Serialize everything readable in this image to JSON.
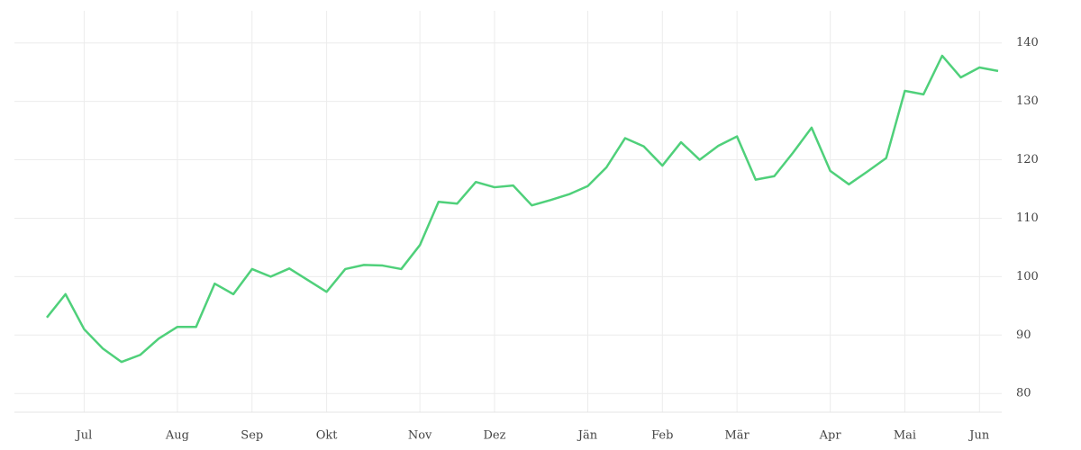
{
  "chart_data": {
    "type": "line",
    "categories": [
      null,
      null,
      "Jul",
      null,
      null,
      null,
      null,
      "Aug",
      null,
      null,
      null,
      "Sep",
      null,
      null,
      null,
      "Okt",
      null,
      null,
      null,
      null,
      "Nov",
      null,
      null,
      null,
      "Dez",
      null,
      null,
      null,
      null,
      "Jän",
      null,
      null,
      null,
      "Feb",
      null,
      null,
      null,
      "Mär",
      null,
      null,
      null,
      null,
      "Apr",
      null,
      null,
      null,
      "Mai",
      null,
      null,
      null,
      "Jun",
      null
    ],
    "series": [
      {
        "color": "#4fd07a",
        "values": [
          93.0,
          97.0,
          91.0,
          87.7,
          85.4,
          86.6,
          89.4,
          91.4,
          91.4,
          98.8,
          97.0,
          101.3,
          100.0,
          101.4,
          99.4,
          97.4,
          101.3,
          102.0,
          101.9,
          101.3,
          105.4,
          112.8,
          112.5,
          116.2,
          115.3,
          115.6,
          112.2,
          113.1,
          114.1,
          115.5,
          118.7,
          123.7,
          122.3,
          119.0,
          123.0,
          120.0,
          122.4,
          124.0,
          116.6,
          117.2,
          121.2,
          125.5,
          118.1,
          115.8,
          118.0,
          120.3,
          131.8,
          131.2,
          137.8,
          134.1,
          135.8,
          135.2
        ]
      }
    ],
    "ylim": [
      76.8,
      145.5
    ],
    "yticks": [
      80,
      90,
      100,
      110,
      120,
      130,
      140
    ],
    "grid": true
  }
}
